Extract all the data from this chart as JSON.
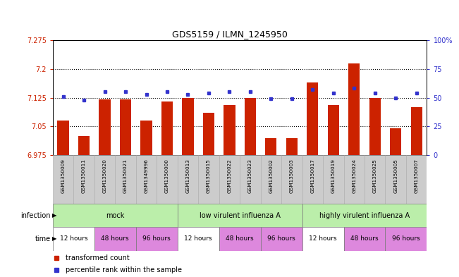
{
  "title": "GDS5159 / ILMN_1245950",
  "samples": [
    "GSM1350009",
    "GSM1350011",
    "GSM1350020",
    "GSM1350021",
    "GSM1349996",
    "GSM1350000",
    "GSM1350013",
    "GSM1350015",
    "GSM1350022",
    "GSM1350023",
    "GSM1350002",
    "GSM1350003",
    "GSM1350017",
    "GSM1350019",
    "GSM1350024",
    "GSM1350025",
    "GSM1350005",
    "GSM1350007"
  ],
  "bar_values": [
    7.065,
    7.025,
    7.12,
    7.12,
    7.065,
    7.115,
    7.125,
    7.085,
    7.105,
    7.125,
    7.02,
    7.02,
    7.165,
    7.105,
    7.215,
    7.125,
    7.045,
    7.1
  ],
  "dot_values": [
    51,
    48,
    55,
    55,
    53,
    55,
    53,
    54,
    55,
    55,
    49,
    49,
    57,
    54,
    58,
    54,
    50,
    54
  ],
  "ylim_left": [
    6.975,
    7.275
  ],
  "ylim_right": [
    0,
    100
  ],
  "yticks_left": [
    6.975,
    7.05,
    7.125,
    7.2,
    7.275
  ],
  "yticks_right": [
    0,
    25,
    50,
    75,
    100
  ],
  "ytick_labels_left": [
    "6.975",
    "7.05",
    "7.125",
    "7.2",
    "7.275"
  ],
  "ytick_labels_right": [
    "0",
    "25",
    "50",
    "75",
    "100%"
  ],
  "hlines": [
    7.05,
    7.125,
    7.2
  ],
  "bar_color": "#cc2200",
  "dot_color": "#3333cc",
  "time_blocks": [
    {
      "label": "12 hours",
      "start": 0,
      "end": 2,
      "color": "#ffffff"
    },
    {
      "label": "48 hours",
      "start": 2,
      "end": 4,
      "color": "#dd88dd"
    },
    {
      "label": "96 hours",
      "start": 4,
      "end": 6,
      "color": "#dd88dd"
    },
    {
      "label": "12 hours",
      "start": 6,
      "end": 8,
      "color": "#ffffff"
    },
    {
      "label": "48 hours",
      "start": 8,
      "end": 10,
      "color": "#dd88dd"
    },
    {
      "label": "96 hours",
      "start": 10,
      "end": 12,
      "color": "#dd88dd"
    },
    {
      "label": "12 hours",
      "start": 12,
      "end": 14,
      "color": "#ffffff"
    },
    {
      "label": "48 hours",
      "start": 14,
      "end": 16,
      "color": "#dd88dd"
    },
    {
      "label": "96 hours",
      "start": 16,
      "end": 18,
      "color": "#dd88dd"
    }
  ],
  "infection_blocks": [
    {
      "label": "mock",
      "start": 0,
      "end": 6,
      "color": "#bbeeaa"
    },
    {
      "label": "low virulent influenza A",
      "start": 6,
      "end": 12,
      "color": "#bbeeaa"
    },
    {
      "label": "highly virulent influenza A",
      "start": 12,
      "end": 18,
      "color": "#bbeeaa"
    }
  ],
  "legend_items": [
    {
      "label": "transformed count",
      "color": "#cc2200"
    },
    {
      "label": "percentile rank within the sample",
      "color": "#3333cc"
    }
  ],
  "sample_label_bg": "#cccccc",
  "background_color": "#ffffff"
}
